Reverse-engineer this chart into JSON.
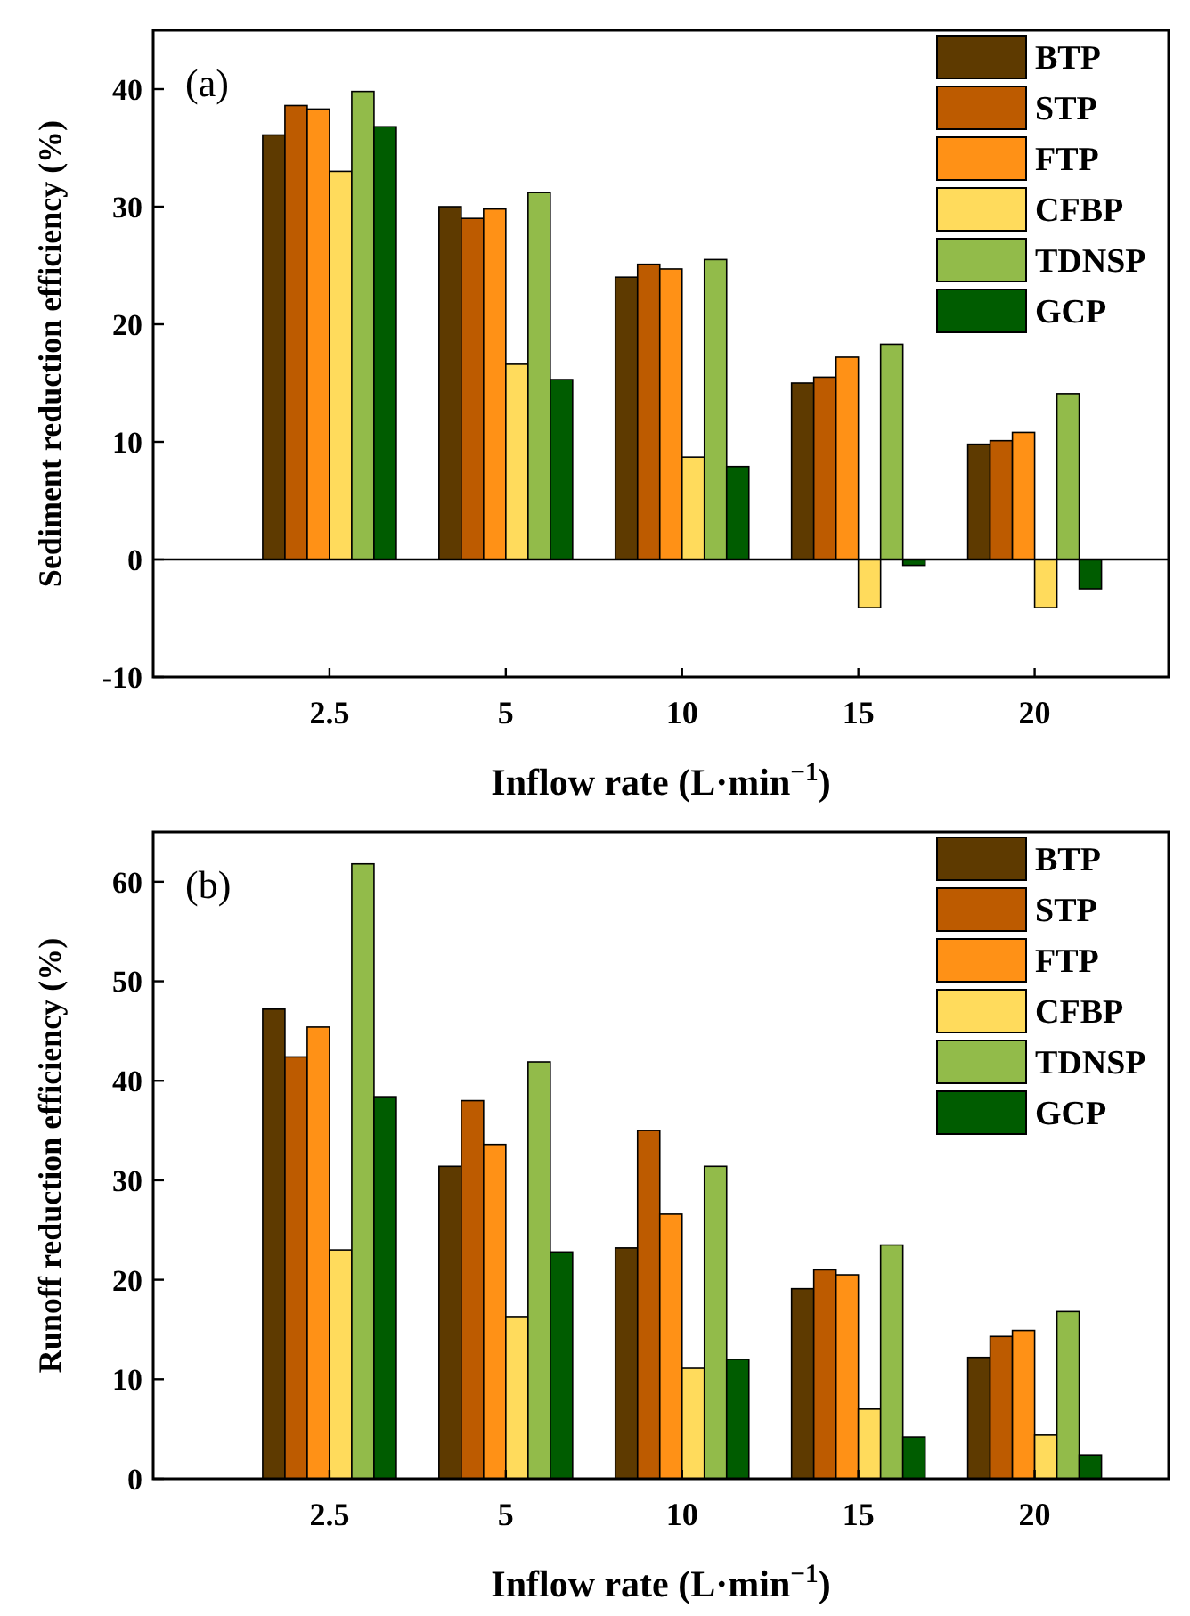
{
  "chart_data": [
    {
      "type": "bar",
      "xlabel": "Inflow rate (L·min$^{−1}$)",
      "ylabel": "Sediment reduction efficiency (%)",
      "categories": [
        "2.5",
        "5",
        "10",
        "15",
        "20"
      ],
      "ylim": [
        -10,
        45
      ],
      "yticks": [
        -10,
        0,
        10,
        20,
        30,
        40
      ],
      "legend": "top right",
      "annotations": [
        "(a)"
      ],
      "series": [
        {
          "name": "BTP",
          "color": "#5e3a00",
          "values": [
            36.1,
            30,
            24,
            15,
            9.8
          ]
        },
        {
          "name": "STP",
          "color": "#bd5b00",
          "values": [
            38.6,
            29,
            25.1,
            15.5,
            10.1
          ]
        },
        {
          "name": "FTP",
          "color": "#ff9116",
          "values": [
            38.3,
            29.8,
            24.7,
            17.2,
            10.8
          ]
        },
        {
          "name": "CFBP",
          "color": "#ffdb5c",
          "values": [
            33,
            16.6,
            8.7,
            -4.1,
            -4.1
          ]
        },
        {
          "name": "TDNSP",
          "color": "#92bb4a",
          "values": [
            39.8,
            31.2,
            25.5,
            18.3,
            14.1
          ]
        },
        {
          "name": "GCP",
          "color": "#005c00",
          "values": [
            36.8,
            15.3,
            7.9,
            -0.5,
            -2.5
          ]
        }
      ]
    },
    {
      "type": "bar",
      "xlabel": "Inflow rate (L·min$^{−1}$)",
      "ylabel": "Runoff reduction efficiency (%)",
      "categories": [
        "2.5",
        "5",
        "10",
        "15",
        "20"
      ],
      "ylim": [
        0,
        65
      ],
      "yticks": [
        0,
        10,
        20,
        30,
        40,
        50,
        60
      ],
      "legend": "top right",
      "annotations": [
        "(b)"
      ],
      "series": [
        {
          "name": "BTP",
          "color": "#5e3a00",
          "values": [
            47.2,
            31.4,
            23.2,
            19.1,
            12.2
          ]
        },
        {
          "name": "STP",
          "color": "#bd5b00",
          "values": [
            42.4,
            38,
            35,
            21,
            14.3
          ]
        },
        {
          "name": "FTP",
          "color": "#ff9116",
          "values": [
            45.4,
            33.6,
            26.6,
            20.5,
            14.9
          ]
        },
        {
          "name": "CFBP",
          "color": "#ffdb5c",
          "values": [
            23,
            16.3,
            11.1,
            7,
            4.4
          ]
        },
        {
          "name": "TDNSP",
          "color": "#92bb4a",
          "values": [
            61.8,
            41.9,
            31.4,
            23.5,
            16.8
          ]
        },
        {
          "name": "GCP",
          "color": "#005c00",
          "values": [
            38.4,
            22.8,
            12,
            4.2,
            2.4
          ]
        }
      ]
    }
  ]
}
